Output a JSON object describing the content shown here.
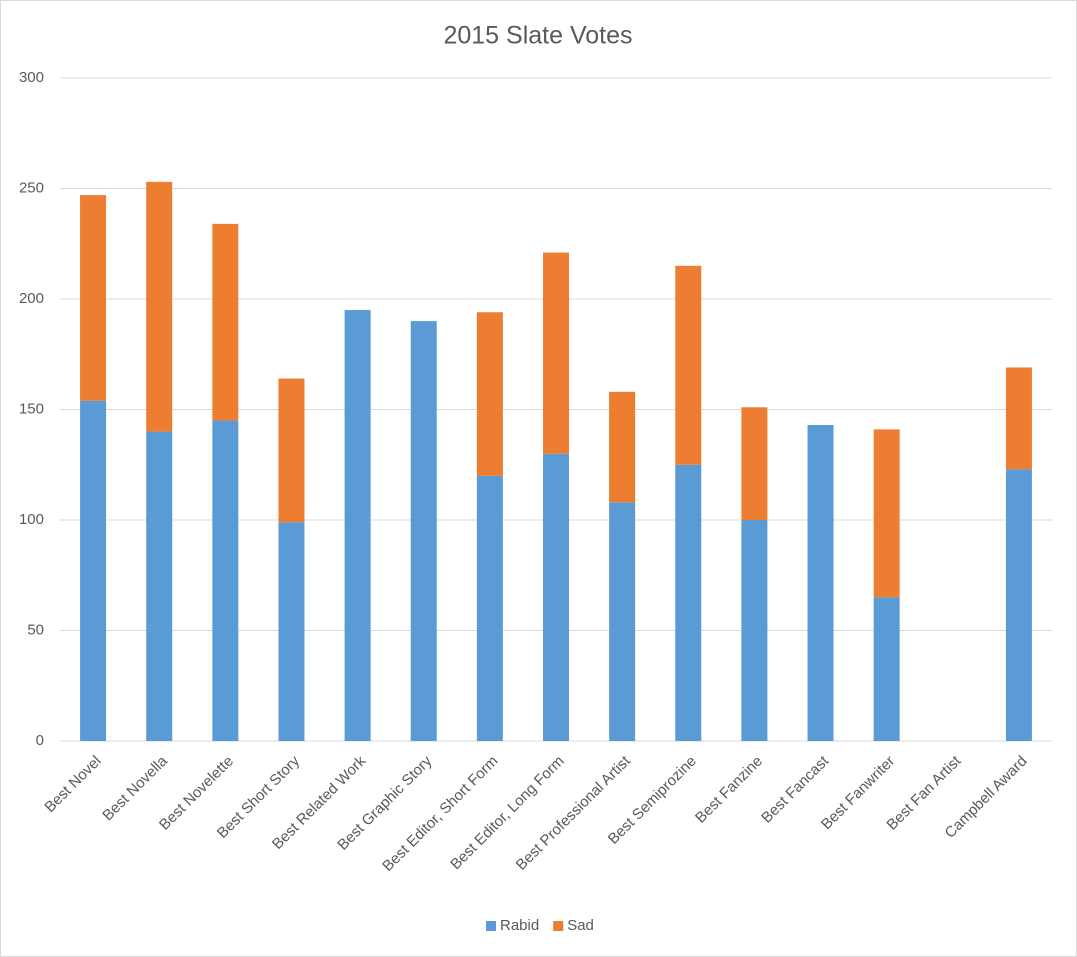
{
  "chart_data": {
    "type": "stacked_bar",
    "title": "2015 Slate Votes",
    "categories": [
      "Best Novel",
      "Best Novella",
      "Best Novelette",
      "Best Short Story",
      "Best Related Work",
      "Best Graphic Story",
      "Best Editor, Short Form",
      "Best Editor, Long Form",
      "Best Professional Artist",
      "Best Semiprozine",
      "Best Fanzine",
      "Best Fancast",
      "Best Fanwriter",
      "Best Fan Artist",
      "Campbell Award"
    ],
    "series": [
      {
        "name": "Rabid",
        "color": "#5b9bd5",
        "values": [
          154,
          140,
          145,
          99,
          195,
          190,
          120,
          130,
          108,
          125,
          100,
          143,
          65,
          0,
          123
        ]
      },
      {
        "name": "Sad",
        "color": "#ed7d31",
        "values": [
          93,
          113,
          89,
          65,
          0,
          0,
          74,
          91,
          50,
          90,
          51,
          0,
          76,
          0,
          46
        ]
      }
    ],
    "ylim": [
      0,
      300
    ],
    "yticks": [
      0,
      50,
      100,
      150,
      200,
      250,
      300
    ],
    "grid": true,
    "legend": "bottom"
  }
}
